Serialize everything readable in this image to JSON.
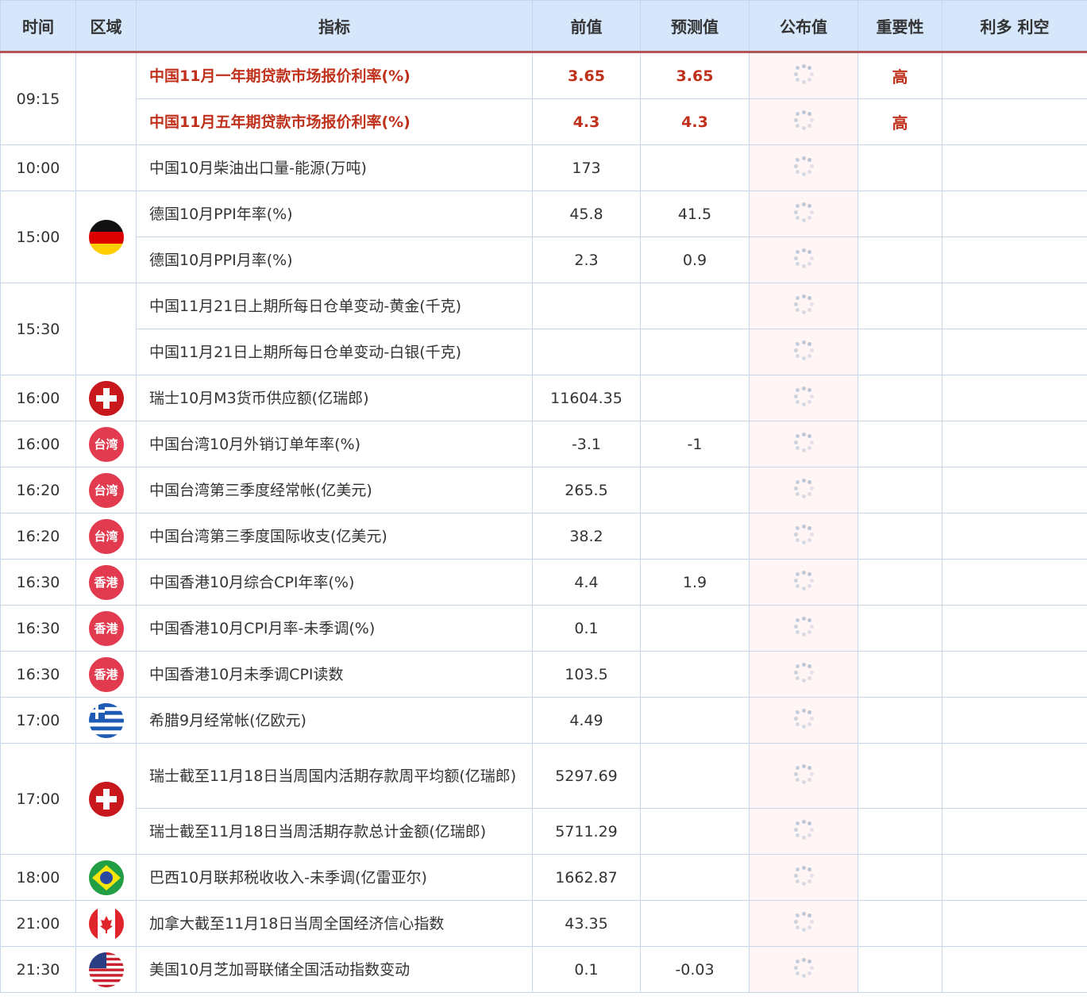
{
  "header": [
    "时间",
    "区域",
    "指标",
    "前值",
    "预测值",
    "公布值",
    "重要性",
    "利多 利空"
  ],
  "colors": {
    "header_bg": "#d6e6fb",
    "accent": "#c0311c",
    "header_border": "#b35555",
    "published_bg": "#fff5f5"
  },
  "groups": [
    {
      "time": "09:15",
      "flag": null,
      "rows": [
        {
          "name": "中国11月一年期贷款市场报价利率(%)",
          "prev": "3.65",
          "forecast": "3.65",
          "importance": "高",
          "highlight": true
        },
        {
          "name": "中国11月五年期贷款市场报价利率(%)",
          "prev": "4.3",
          "forecast": "4.3",
          "importance": "高",
          "highlight": true
        }
      ]
    },
    {
      "time": "10:00",
      "flag": null,
      "rows": [
        {
          "name": "中国10月柴油出口量-能源(万吨)",
          "prev": "173",
          "forecast": ""
        }
      ]
    },
    {
      "time": "15:00",
      "flag": "germany-flag-icon",
      "rows": [
        {
          "name": "德国10月PPI年率(%)",
          "prev": "45.8",
          "forecast": "41.5"
        },
        {
          "name": "德国10月PPI月率(%)",
          "prev": "2.3",
          "forecast": "0.9"
        }
      ]
    },
    {
      "time": "15:30",
      "flag": null,
      "rows": [
        {
          "name": "中国11月21日上期所每日仓单变动-黄金(千克)",
          "prev": "",
          "forecast": ""
        },
        {
          "name": "中国11月21日上期所每日仓单变动-白银(千克)",
          "prev": "",
          "forecast": ""
        }
      ]
    },
    {
      "time": "16:00",
      "flag": "switzerland-flag-icon",
      "rows": [
        {
          "name": "瑞士10月M3货币供应额(亿瑞郎)",
          "prev": "11604.35",
          "forecast": ""
        }
      ]
    },
    {
      "time": "16:00",
      "flag": "taiwan-flag-icon",
      "flag_text": "台湾",
      "rows": [
        {
          "name": "中国台湾10月外销订单年率(%)",
          "prev": "-3.1",
          "forecast": "-1"
        }
      ]
    },
    {
      "time": "16:20",
      "flag": "taiwan-flag-icon",
      "flag_text": "台湾",
      "rows": [
        {
          "name": "中国台湾第三季度经常帐(亿美元)",
          "prev": "265.5",
          "forecast": ""
        }
      ]
    },
    {
      "time": "16:20",
      "flag": "taiwan-flag-icon",
      "flag_text": "台湾",
      "rows": [
        {
          "name": "中国台湾第三季度国际收支(亿美元)",
          "prev": "38.2",
          "forecast": ""
        }
      ]
    },
    {
      "time": "16:30",
      "flag": "hongkong-flag-icon",
      "flag_text": "香港",
      "rows": [
        {
          "name": "中国香港10月综合CPI年率(%)",
          "prev": "4.4",
          "forecast": "1.9"
        }
      ]
    },
    {
      "time": "16:30",
      "flag": "hongkong-flag-icon",
      "flag_text": "香港",
      "rows": [
        {
          "name": "中国香港10月CPI月率-未季调(%)",
          "prev": "0.1",
          "forecast": ""
        }
      ]
    },
    {
      "time": "16:30",
      "flag": "hongkong-flag-icon",
      "flag_text": "香港",
      "rows": [
        {
          "name": "中国香港10月未季调CPI读数",
          "prev": "103.5",
          "forecast": ""
        }
      ]
    },
    {
      "time": "17:00",
      "flag": "greece-flag-icon",
      "rows": [
        {
          "name": "希腊9月经常帐(亿欧元)",
          "prev": "4.49",
          "forecast": ""
        }
      ]
    },
    {
      "time": "17:00",
      "flag": "switzerland-flag-icon",
      "rows": [
        {
          "name": "瑞士截至11月18日当周国内活期存款周平均额(亿瑞郎)",
          "prev": "5297.69",
          "forecast": "",
          "tall": true
        },
        {
          "name": "瑞士截至11月18日当周活期存款总计金额(亿瑞郎)",
          "prev": "5711.29",
          "forecast": ""
        }
      ]
    },
    {
      "time": "18:00",
      "flag": "brazil-flag-icon",
      "rows": [
        {
          "name": "巴西10月联邦税收收入-未季调(亿雷亚尔)",
          "prev": "1662.87",
          "forecast": ""
        }
      ]
    },
    {
      "time": "21:00",
      "flag": "canada-flag-icon",
      "rows": [
        {
          "name": "加拿大截至11月18日当周全国经济信心指数",
          "prev": "43.35",
          "forecast": ""
        }
      ]
    },
    {
      "time": "21:30",
      "flag": "usa-flag-icon",
      "rows": [
        {
          "name": "美国10月芝加哥联储全国活动指数变动",
          "prev": "0.1",
          "forecast": "-0.03"
        }
      ]
    }
  ]
}
